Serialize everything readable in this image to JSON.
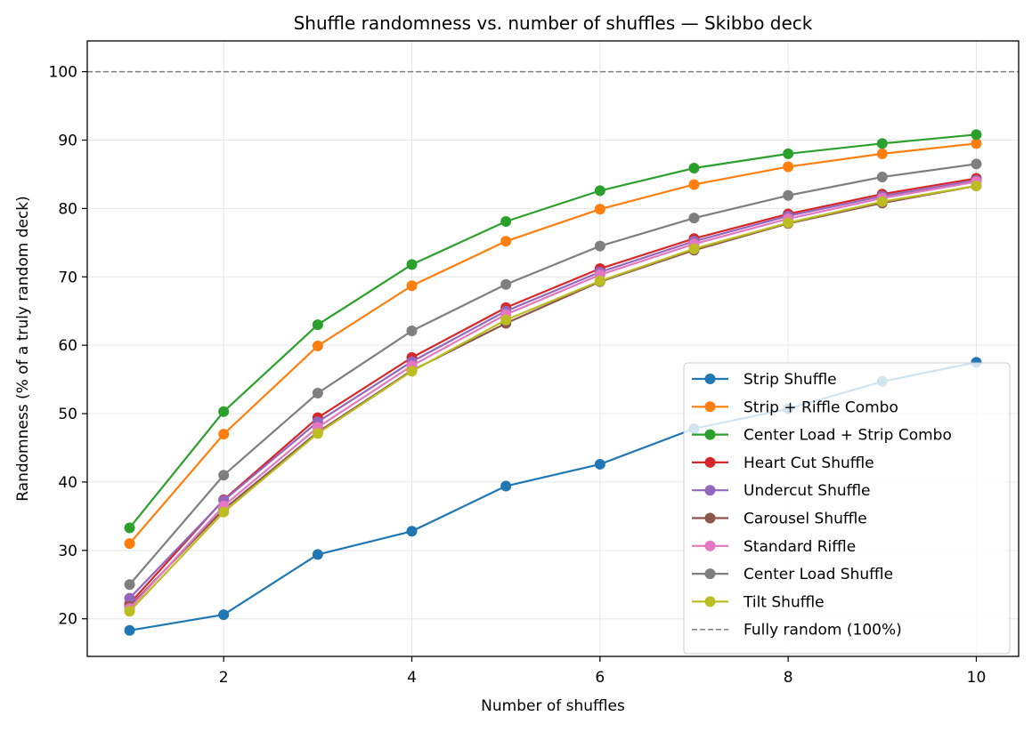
{
  "chart_data": {
    "type": "line",
    "title": "Shuffle randomness vs. number of shuffles — Skibbo deck",
    "xlabel": "Number of shuffles",
    "ylabel": "Randomness (% of a truly random deck)",
    "xlim": [
      0.55,
      10.45
    ],
    "ylim": [
      14.5,
      104.5
    ],
    "xticks": [
      2,
      4,
      6,
      8,
      10
    ],
    "yticks": [
      20,
      30,
      40,
      50,
      60,
      70,
      80,
      90,
      100
    ],
    "grid": true,
    "legend_position": "lower-right",
    "x": [
      1,
      2,
      3,
      4,
      5,
      6,
      7,
      8,
      9,
      10
    ],
    "series": [
      {
        "name": "Strip Shuffle",
        "color": "#1f77b4",
        "values": [
          18.3,
          20.6,
          29.4,
          32.8,
          39.4,
          42.6,
          47.8,
          50.7,
          54.7,
          57.5
        ]
      },
      {
        "name": "Strip + Riffle Combo",
        "color": "#ff7f0e",
        "values": [
          31.0,
          47.0,
          59.9,
          68.7,
          75.2,
          79.9,
          83.5,
          86.1,
          88.0,
          89.5
        ]
      },
      {
        "name": "Center Load + Strip Combo",
        "color": "#2ca02c",
        "values": [
          33.3,
          50.3,
          63.0,
          71.8,
          78.1,
          82.6,
          85.9,
          88.0,
          89.5,
          90.8
        ]
      },
      {
        "name": "Heart Cut Shuffle",
        "color": "#d62728",
        "values": [
          22.2,
          37.4,
          49.4,
          58.2,
          65.5,
          71.2,
          75.6,
          79.2,
          82.1,
          84.4
        ]
      },
      {
        "name": "Undercut Shuffle",
        "color": "#9467bd",
        "values": [
          23.0,
          37.3,
          48.8,
          57.6,
          65.0,
          70.7,
          75.2,
          78.9,
          81.8,
          84.1
        ]
      },
      {
        "name": "Carousel Shuffle",
        "color": "#8c564b",
        "values": [
          21.8,
          36.0,
          47.3,
          56.3,
          63.2,
          69.3,
          73.9,
          77.8,
          80.8,
          83.3
        ]
      },
      {
        "name": "Standard Riffle",
        "color": "#e377c2",
        "values": [
          21.5,
          36.5,
          48.0,
          57.0,
          64.5,
          70.3,
          74.8,
          78.5,
          81.5,
          83.9
        ]
      },
      {
        "name": "Center Load Shuffle",
        "color": "#7f7f7f",
        "values": [
          25.0,
          41.0,
          53.0,
          62.1,
          68.9,
          74.5,
          78.6,
          81.9,
          84.6,
          86.5
        ]
      },
      {
        "name": "Tilt Shuffle",
        "color": "#bcbd22",
        "values": [
          21.1,
          35.6,
          47.1,
          56.2,
          63.7,
          69.4,
          74.1,
          77.9,
          81.0,
          83.3
        ]
      }
    ],
    "reference_line": {
      "name": "Fully random (100%)",
      "value": 100,
      "color": "#808080"
    }
  }
}
